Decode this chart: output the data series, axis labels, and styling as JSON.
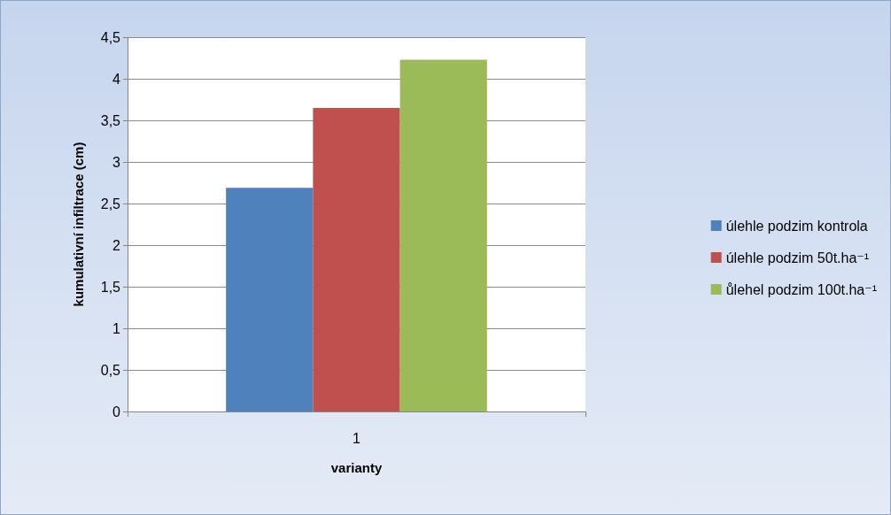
{
  "chart_data": {
    "type": "bar",
    "xlabel": "varianty",
    "ylabel": "kumulativní infiltrace (cm)",
    "categories": [
      "1"
    ],
    "series": [
      {
        "name": "úlehle podzim kontrola",
        "color": "#4f81bd",
        "values": [
          2.69
        ]
      },
      {
        "name": "úlehle podzim 50t.ha⁻¹",
        "color": "#c0504d",
        "values": [
          3.65
        ]
      },
      {
        "name": "ůlehel podzim 100t.ha⁻¹",
        "color": "#9bbb59",
        "values": [
          4.23
        ]
      }
    ],
    "ylim": [
      0,
      4.5
    ],
    "yticks": [
      0,
      {
        "value": 0.5,
        "label": "0,5"
      },
      1,
      {
        "value": 1.5,
        "label": "1,5"
      },
      2,
      {
        "value": 2.5,
        "label": "2,5"
      },
      3,
      {
        "value": 3.5,
        "label": "3,5"
      },
      4,
      {
        "value": 4.5,
        "label": "4,5"
      }
    ],
    "grid": "y",
    "legend": "right"
  }
}
